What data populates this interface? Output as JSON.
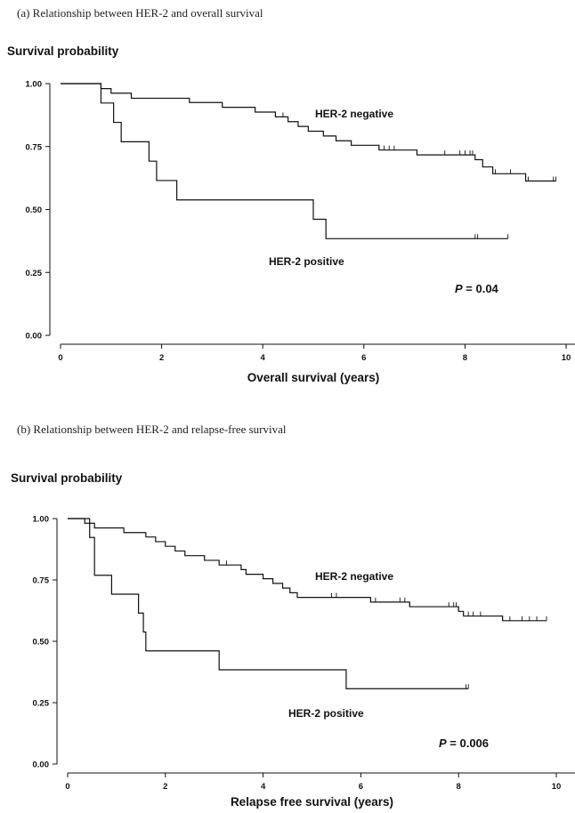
{
  "chart_data": [
    {
      "type": "line",
      "caption": "(a) Relationship between HER-2 and overall survival",
      "ylabel": "Survival probability",
      "xlabel": "Overall survival (years)",
      "xlim": [
        0,
        10
      ],
      "ylim": [
        0,
        1
      ],
      "xticks": [
        "0",
        "2",
        "4",
        "6",
        "8",
        "10"
      ],
      "yticks": [
        "0.00",
        "0.25",
        "0.50",
        "0.75",
        "1.00"
      ],
      "p_value": {
        "prefix": "P",
        "text": " = 0.04"
      },
      "series": [
        {
          "name": "HER-2 negative",
          "steps": [
            [
              0,
              1.0
            ],
            [
              0.8,
              0.98
            ],
            [
              1.0,
              0.962
            ],
            [
              1.4,
              0.942
            ],
            [
              2.55,
              0.925
            ],
            [
              3.2,
              0.906
            ],
            [
              3.85,
              0.887
            ],
            [
              4.25,
              0.868
            ],
            [
              4.5,
              0.849
            ],
            [
              4.7,
              0.83
            ],
            [
              4.9,
              0.811
            ],
            [
              5.2,
              0.792
            ],
            [
              5.45,
              0.773
            ],
            [
              5.75,
              0.755
            ],
            [
              6.3,
              0.736
            ],
            [
              7.05,
              0.717
            ],
            [
              8.2,
              0.698
            ],
            [
              8.35,
              0.669
            ],
            [
              8.55,
              0.642
            ],
            [
              9.2,
              0.613
            ],
            [
              9.8,
              0.613
            ]
          ],
          "censored": [
            4.4,
            6.3,
            6.4,
            6.5,
            6.6,
            7.05,
            7.6,
            7.9,
            8.0,
            8.1,
            8.15,
            8.6,
            8.9,
            9.2,
            9.25,
            9.75,
            9.8
          ]
        },
        {
          "name": "HER-2 positive",
          "steps": [
            [
              0,
              1.0
            ],
            [
              0.8,
              0.923
            ],
            [
              1.05,
              0.846
            ],
            [
              1.2,
              0.769
            ],
            [
              1.75,
              0.692
            ],
            [
              1.9,
              0.615
            ],
            [
              2.3,
              0.538
            ],
            [
              5.0,
              0.461
            ],
            [
              5.25,
              0.384
            ],
            [
              8.85,
              0.384
            ]
          ],
          "censored": [
            8.2,
            8.25,
            8.85
          ]
        }
      ]
    },
    {
      "type": "line",
      "caption": "(b) Relationship between HER-2 and relapse-free survival",
      "ylabel": "Survival probability",
      "xlabel": "Relapse free survival (years)",
      "xlim": [
        0,
        10
      ],
      "ylim": [
        0,
        1
      ],
      "xticks": [
        "0",
        "2",
        "4",
        "6",
        "8",
        "10"
      ],
      "yticks": [
        "0.00",
        "0.25",
        "0.50",
        "0.75",
        "1.00"
      ],
      "p_value": {
        "prefix": "P",
        "text": " = 0.006"
      },
      "series": [
        {
          "name": "HER-2 negative",
          "steps": [
            [
              0,
              1.0
            ],
            [
              0.35,
              0.981
            ],
            [
              0.55,
              0.962
            ],
            [
              1.15,
              0.943
            ],
            [
              1.6,
              0.925
            ],
            [
              1.8,
              0.906
            ],
            [
              2.0,
              0.887
            ],
            [
              2.2,
              0.868
            ],
            [
              2.4,
              0.849
            ],
            [
              2.8,
              0.83
            ],
            [
              3.1,
              0.811
            ],
            [
              3.55,
              0.792
            ],
            [
              3.65,
              0.773
            ],
            [
              4.0,
              0.755
            ],
            [
              4.2,
              0.736
            ],
            [
              4.4,
              0.717
            ],
            [
              4.55,
              0.698
            ],
            [
              4.7,
              0.679
            ],
            [
              5.55,
              0.679
            ],
            [
              6.2,
              0.66
            ],
            [
              7.0,
              0.641
            ],
            [
              8.0,
              0.622
            ],
            [
              8.1,
              0.603
            ],
            [
              8.9,
              0.584
            ],
            [
              9.8,
              0.584
            ]
          ],
          "censored": [
            3.25,
            4.7,
            5.4,
            5.5,
            6.3,
            6.8,
            6.9,
            7.0,
            7.8,
            7.9,
            7.95,
            8.0,
            8.2,
            8.3,
            8.45,
            8.9,
            9.05,
            9.3,
            9.45,
            9.6,
            9.8
          ]
        },
        {
          "name": "HER-2 positive",
          "steps": [
            [
              0,
              1.0
            ],
            [
              0.45,
              0.923
            ],
            [
              0.55,
              0.769
            ],
            [
              0.9,
              0.692
            ],
            [
              1.45,
              0.615
            ],
            [
              1.55,
              0.538
            ],
            [
              1.6,
              0.461
            ],
            [
              3.1,
              0.384
            ],
            [
              5.7,
              0.307
            ],
            [
              8.2,
              0.307
            ]
          ],
          "censored": [
            8.15,
            8.2
          ]
        }
      ]
    }
  ]
}
